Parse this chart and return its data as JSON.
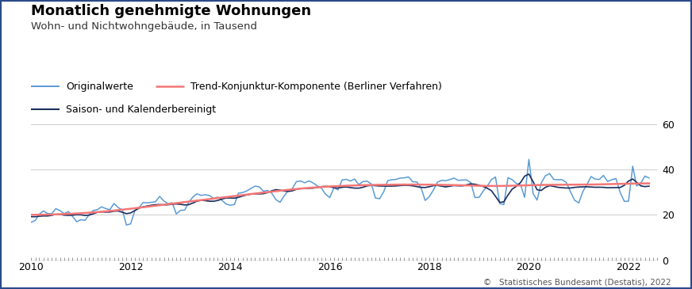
{
  "title": "Monatlich genehmigte Wohnungen",
  "subtitle": "Wohn- und Nichtwohngebäude, in Tausend",
  "legend_entries": [
    {
      "label": "Originalwerte",
      "color": "#5b9bd5",
      "lw": 1.1
    },
    {
      "label": "Trend-Konjunktur-Komponente (Berliner Verfahren)",
      "color": "#f47676",
      "lw": 1.8
    },
    {
      "label": "Saison- und Kalenderbereinigt",
      "color": "#1a2f5e",
      "lw": 1.2
    }
  ],
  "background_color": "#ffffff",
  "border_color": "#2b4a8b",
  "footer_text": "©   Statistisches Bundesamt (Destatis), 2022",
  "title_fontsize": 13,
  "subtitle_fontsize": 9.5,
  "tick_fontsize": 9,
  "xtick_years": [
    "2010",
    "2012",
    "2014",
    "2016",
    "2018",
    "2020",
    "2022"
  ]
}
